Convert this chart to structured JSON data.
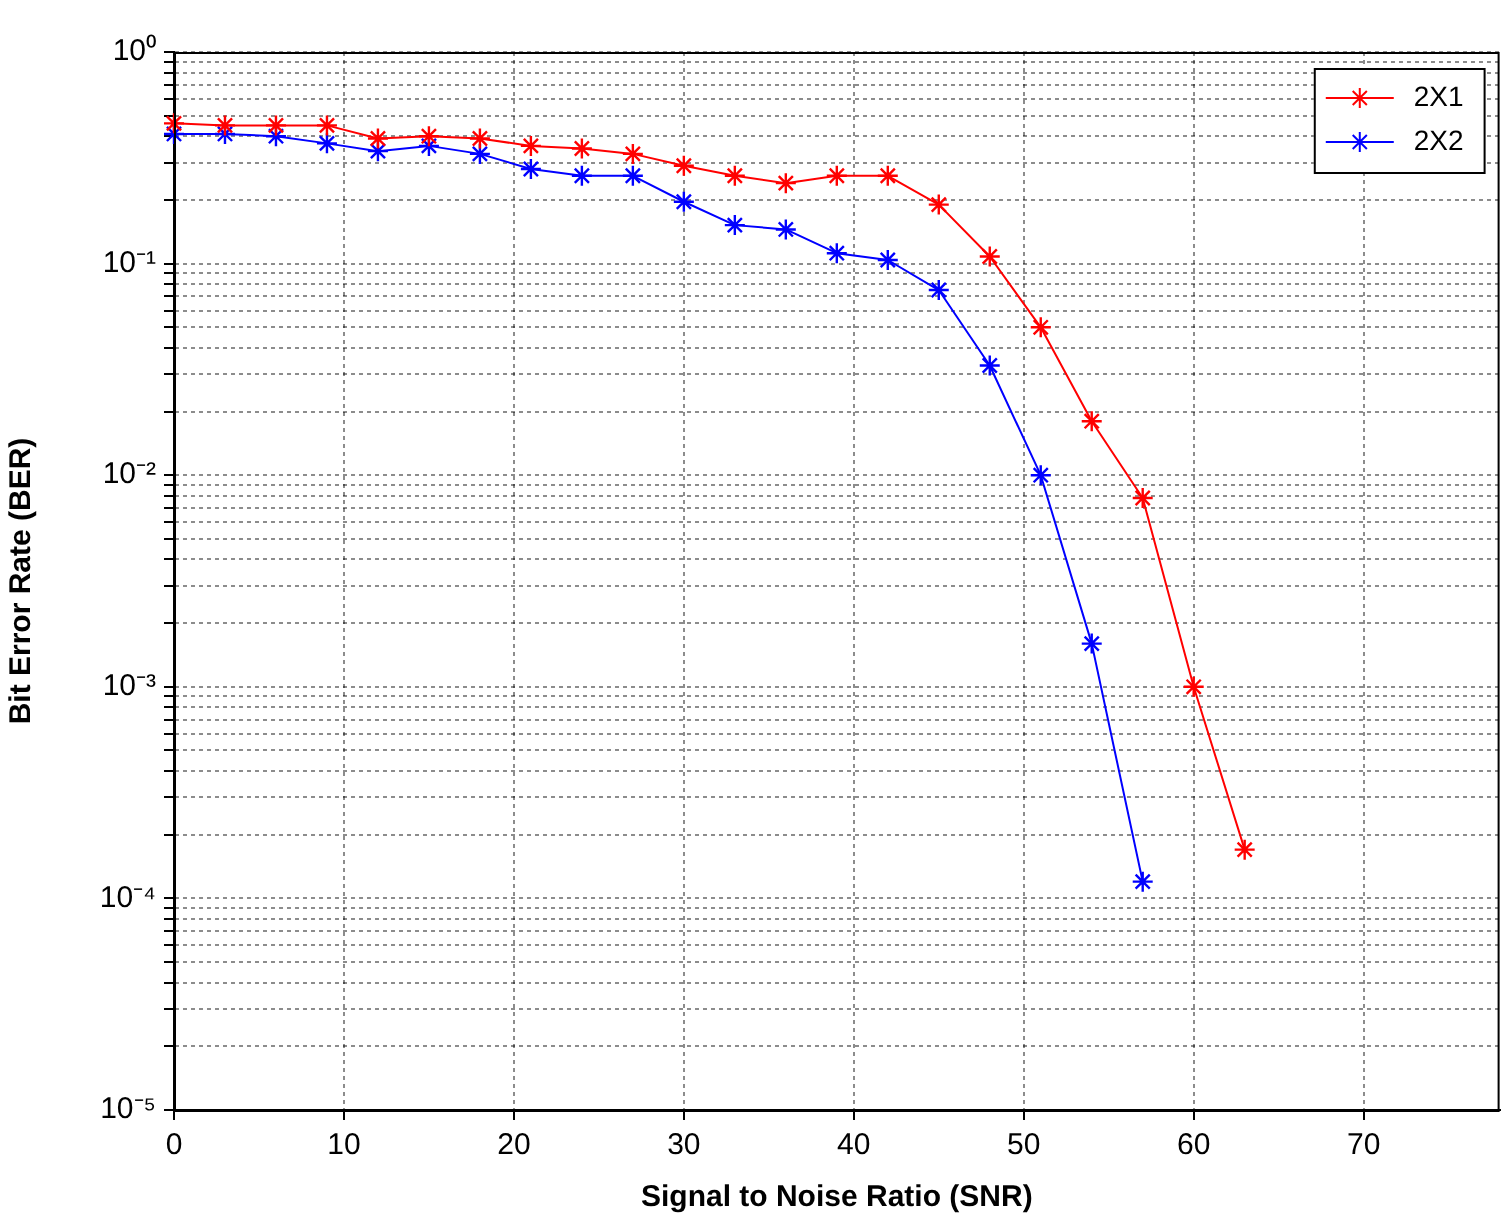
{
  "chart_data": {
    "type": "line",
    "xlabel": "Signal to Noise Ratio (SNR)",
    "ylabel": "Bit Error Rate (BER)",
    "x": [
      0,
      3,
      6,
      9,
      12,
      15,
      18,
      21,
      24,
      27,
      30,
      33,
      36,
      39,
      42,
      45,
      48,
      51,
      54,
      57,
      60,
      63
    ],
    "series": [
      {
        "name": "2X1",
        "color": "#ff0000",
        "values": [
          0.46,
          0.45,
          0.45,
          0.45,
          0.39,
          0.4,
          0.39,
          0.36,
          0.35,
          0.33,
          0.29,
          0.26,
          0.24,
          0.26,
          0.26,
          0.19,
          0.108,
          0.05,
          0.018,
          0.0078,
          0.001,
          0.00017
        ]
      },
      {
        "name": "2X2",
        "color": "#0000ff",
        "x": [
          0,
          3,
          6,
          9,
          12,
          15,
          18,
          21,
          24,
          27,
          30,
          33,
          36,
          39,
          42,
          45,
          48,
          51,
          54,
          57
        ],
        "values": [
          0.41,
          0.41,
          0.4,
          0.37,
          0.34,
          0.36,
          0.33,
          0.28,
          0.26,
          0.26,
          0.196,
          0.152,
          0.145,
          0.112,
          0.104,
          0.075,
          0.033,
          0.01,
          0.0016,
          0.00012
        ]
      }
    ],
    "xlim": [
      0,
      78
    ],
    "xticks": [
      0,
      10,
      20,
      30,
      40,
      50,
      60,
      70
    ],
    "ylim": [
      1e-05,
      1
    ],
    "yticks": [
      {
        "value": 1e-05,
        "label": "10⁻⁵"
      },
      {
        "value": 2e-05,
        "label": null
      },
      {
        "value": 3e-05,
        "label": null
      },
      {
        "value": 4e-05,
        "label": null
      },
      {
        "value": 5e-05,
        "label": null
      },
      {
        "value": 6e-05,
        "label": null
      },
      {
        "value": 7e-05,
        "label": null
      },
      {
        "value": 8e-05,
        "label": null
      },
      {
        "value": 9e-05,
        "label": null
      },
      {
        "value": 0.0001,
        "label": "10⁻⁴"
      },
      {
        "value": 0.0002,
        "label": null
      },
      {
        "value": 0.0003,
        "label": null
      },
      {
        "value": 0.0004,
        "label": null
      },
      {
        "value": 0.0005,
        "label": null
      },
      {
        "value": 0.0006,
        "label": null
      },
      {
        "value": 0.0007,
        "label": null
      },
      {
        "value": 0.0008,
        "label": null
      },
      {
        "value": 0.0009,
        "label": null
      },
      {
        "value": 0.001,
        "label": "10⁻³"
      },
      {
        "value": 0.002,
        "label": null
      },
      {
        "value": 0.003,
        "label": null
      },
      {
        "value": 0.004,
        "label": null
      },
      {
        "value": 0.005,
        "label": null
      },
      {
        "value": 0.006,
        "label": null
      },
      {
        "value": 0.007,
        "label": null
      },
      {
        "value": 0.008,
        "label": null
      },
      {
        "value": 0.009,
        "label": null
      },
      {
        "value": 0.01,
        "label": "10⁻²"
      },
      {
        "value": 0.02,
        "label": null
      },
      {
        "value": 0.03,
        "label": null
      },
      {
        "value": 0.04,
        "label": null
      },
      {
        "value": 0.05,
        "label": null
      },
      {
        "value": 0.06,
        "label": null
      },
      {
        "value": 0.07,
        "label": null
      },
      {
        "value": 0.08,
        "label": null
      },
      {
        "value": 0.09,
        "label": null
      },
      {
        "value": 0.1,
        "label": "10⁻¹"
      },
      {
        "value": 0.2,
        "label": null
      },
      {
        "value": 0.3,
        "label": null
      },
      {
        "value": 0.4,
        "label": null
      },
      {
        "value": 0.5,
        "label": null
      },
      {
        "value": 0.6,
        "label": null
      },
      {
        "value": 0.7,
        "label": null
      },
      {
        "value": 0.8,
        "label": null
      },
      {
        "value": 0.9,
        "label": null
      },
      {
        "value": 1,
        "label": "10⁰"
      }
    ],
    "log": "y",
    "grid": true,
    "legend": "top right",
    "marker": "cross",
    "line_style": "solid"
  }
}
